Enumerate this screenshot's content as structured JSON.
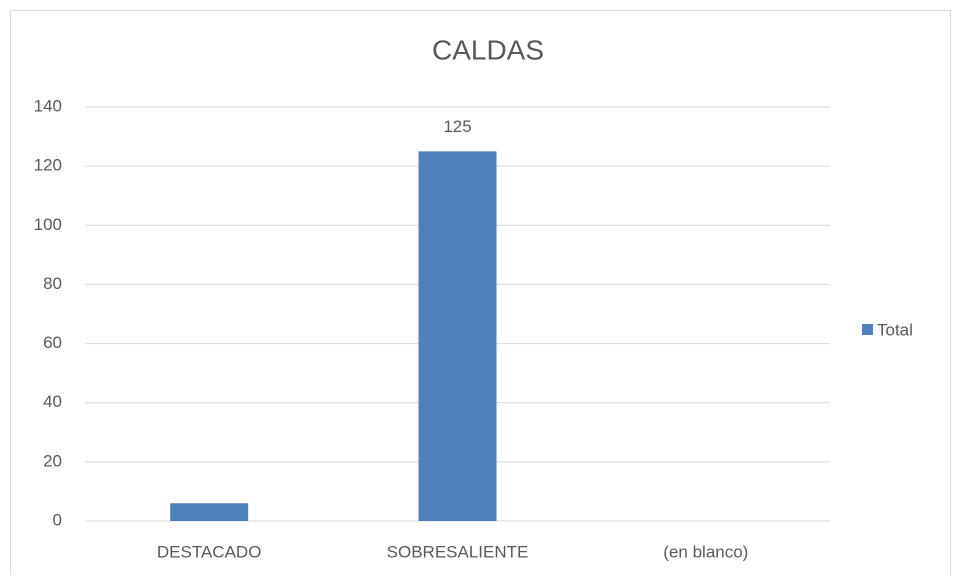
{
  "chart_data": {
    "type": "bar",
    "title": "CALDAS",
    "categories": [
      "DESTACADO",
      "SOBRESALIENTE",
      "(en blanco)"
    ],
    "series": [
      {
        "name": "Total",
        "color": "#4f81bd",
        "values": [
          6,
          125,
          null
        ],
        "value_labels": [
          null,
          "125",
          null
        ]
      }
    ],
    "ylim": [
      0,
      140
    ],
    "yticks": [
      0,
      20,
      40,
      60,
      80,
      100,
      120,
      140
    ],
    "grid": true,
    "legend": "right"
  }
}
